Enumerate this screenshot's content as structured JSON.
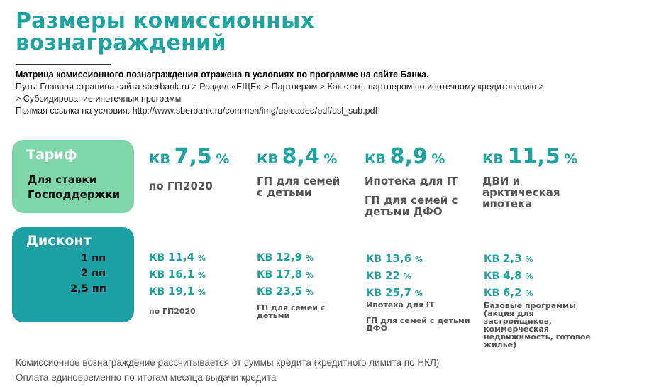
{
  "title": [
    "Размеры комиссионных",
    "вознаграждений"
  ],
  "info": {
    "bold_line": "Матрица комиссионного вознаграждения отражена в условиях по программе на сайте Банка.",
    "path_line1": "Путь: Главная страница сайта sberbank.ru  > Раздел «ЕЩЕ» > Партнерам > Как стать партнером по ипотечному кредитованию >",
    "path_line2": "> Субсидирование ипотечных программ",
    "link_line": "Прямая ссылка на условия: http://www.sberbank.ru/common/img/uploaded/pdf/usl_sub.pdf"
  },
  "tariff_card": {
    "head": "Тариф",
    "sub": [
      "Для ставки",
      "Господдержки"
    ]
  },
  "discount_card": {
    "head": "Дисконт",
    "levels": [
      "1 пп",
      "2 пп",
      "2,5 пп"
    ]
  },
  "tariffs": [
    {
      "kv": "КВ",
      "value": "7,5",
      "pct": "%",
      "desc": [
        "по ГП2020"
      ]
    },
    {
      "kv": "КВ",
      "value": "8,4",
      "pct": "%",
      "desc": [
        "ГП для семей",
        "с детьми"
      ]
    },
    {
      "kv": "КВ",
      "value": "8,9",
      "pct": "%",
      "desc": [
        "Ипотека для IT"
      ],
      "desc2": [
        "ГП для семей с",
        "детьми ДФО"
      ]
    },
    {
      "kv": "КВ",
      "value": "11,5",
      "pct": "%",
      "desc": [
        "ДВИ и",
        "арктическая",
        "ипотека"
      ]
    }
  ],
  "discounts": [
    {
      "values": [
        "11,4",
        "16,1",
        "19,1"
      ],
      "desc": [
        "по ГП2020"
      ]
    },
    {
      "values": [
        "12,9",
        "17,8",
        "23,5"
      ],
      "desc": [
        "ГП для семей с",
        "детьми"
      ]
    },
    {
      "values": [
        "13,6",
        "22",
        "25,7"
      ],
      "desc": [
        "Ипотека для IT"
      ],
      "desc2": [
        "ГП для семей с детьми",
        "ДФО"
      ]
    },
    {
      "values": [
        "2,3",
        "4,8",
        "6,2"
      ],
      "desc": [
        "Базовые программы",
        "(акция для",
        "застройщиков,",
        "коммерческая",
        "недвижимость, готовое",
        "жилье)"
      ]
    }
  ],
  "kv_label": "КВ",
  "pct_label": "%",
  "footer": [
    "Комиссионное вознаграждение рассчитывается от суммы кредита (кредитного лимита по НКЛ)",
    "Оплата единовременно по итогам месяца выдачи кредита"
  ],
  "colors": {
    "teal": "#1fa3a0",
    "mint": "#7fd6a8",
    "dark_teal": "#1c9fa5"
  }
}
